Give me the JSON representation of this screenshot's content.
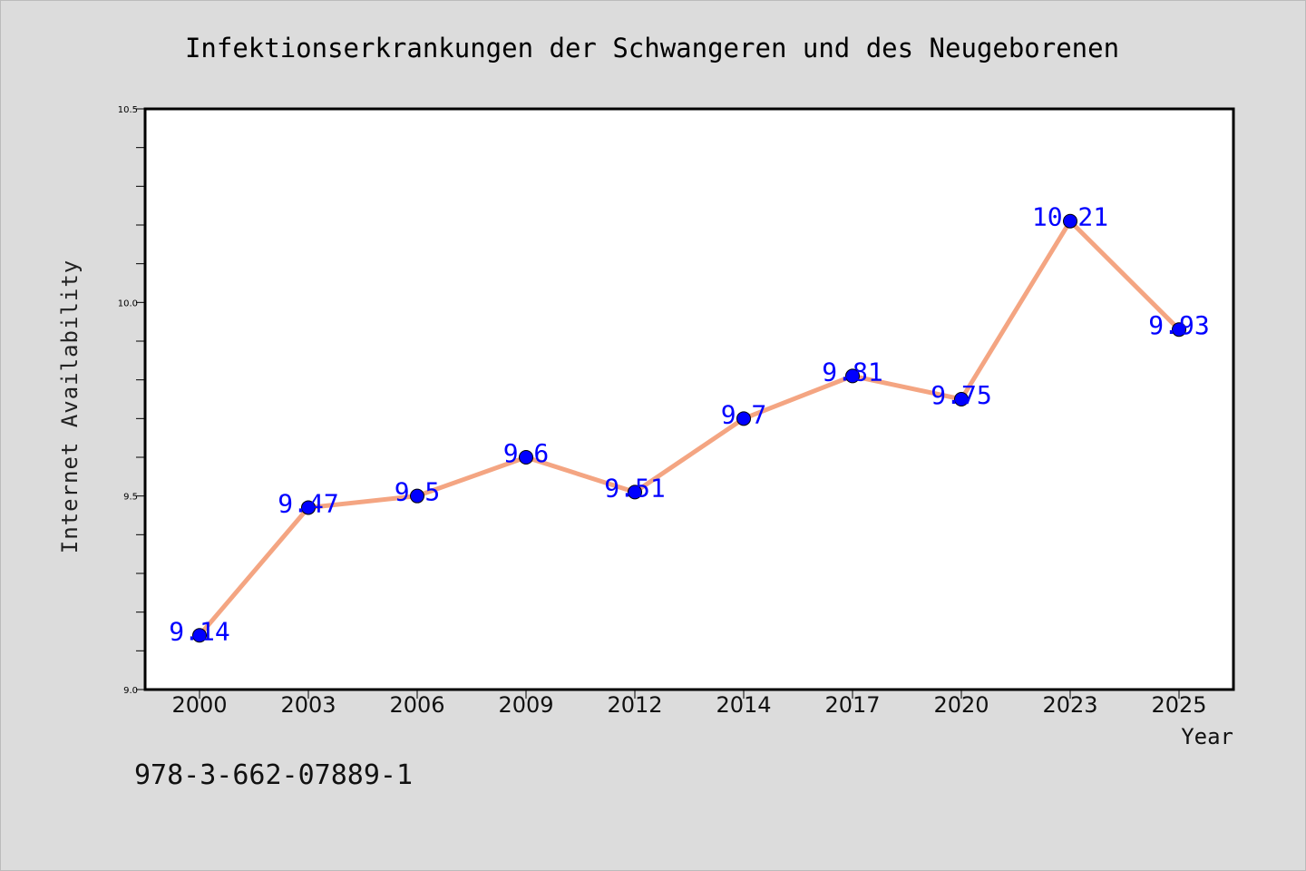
{
  "chart_data": {
    "type": "line",
    "title": "Infektionserkrankungen der Schwangeren und des Neugeborenen",
    "xlabel": "Year",
    "ylabel": "Internet Availability",
    "categories": [
      "2000",
      "2003",
      "2006",
      "2009",
      "2012",
      "2014",
      "2017",
      "2020",
      "2023",
      "2025"
    ],
    "values": [
      9.14,
      9.47,
      9.5,
      9.6,
      9.51,
      9.7,
      9.81,
      9.75,
      10.21,
      9.93
    ],
    "data_labels": [
      "9.14",
      "9.47",
      "9.5",
      "9.6",
      "9.51",
      "9.7",
      "9.81",
      "9.75",
      "10.21",
      "9.93"
    ],
    "ylim": [
      9.0,
      10.5
    ],
    "yticks": [
      "9.0",
      "9.5",
      "10.0",
      "10.5"
    ],
    "grid": false,
    "legend": "none",
    "colors": {
      "line": "#f4a582",
      "marker": "#0000ff",
      "label": "#0000ff",
      "background": "#dcdcdc",
      "plot_background": "#ffffff"
    }
  },
  "footer_text": "978-3-662-07889-1"
}
